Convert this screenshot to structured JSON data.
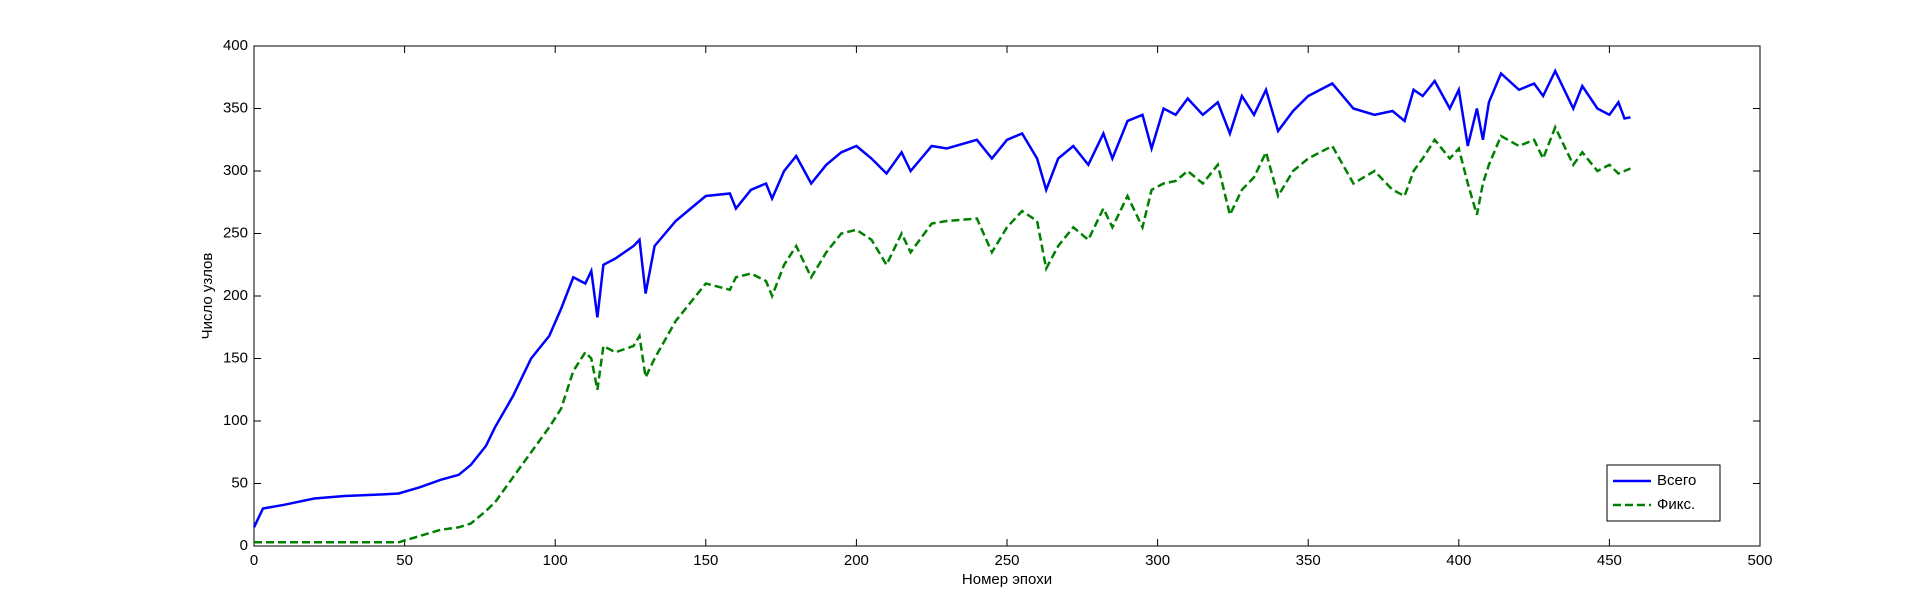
{
  "chart_data": {
    "type": "line",
    "xlabel": "Номер эпохи",
    "ylabel": "Число узлов",
    "x": [
      0,
      3,
      10,
      20,
      30,
      40,
      48,
      55,
      62,
      68,
      72,
      77,
      80,
      86,
      92,
      98,
      102,
      106,
      110,
      112,
      114,
      116,
      120,
      126,
      128,
      130,
      133,
      140,
      145,
      150,
      158,
      160,
      165,
      170,
      172,
      176,
      180,
      185,
      190,
      195,
      200,
      205,
      210,
      215,
      218,
      225,
      230,
      240,
      245,
      250,
      255,
      260,
      263,
      267,
      272,
      277,
      282,
      285,
      290,
      295,
      298,
      302,
      306,
      310,
      315,
      320,
      324,
      328,
      332,
      336,
      340,
      345,
      350,
      358,
      365,
      372,
      378,
      382,
      385,
      388,
      392,
      397,
      400,
      403,
      406,
      408,
      410,
      414,
      420,
      425,
      428,
      432,
      438,
      441,
      446,
      450,
      453,
      455,
      457
    ],
    "series": [
      {
        "name": "Всего",
        "color": "#0000ff",
        "dash": "solid",
        "values": [
          15,
          30,
          33,
          38,
          40,
          41,
          42,
          47,
          53,
          57,
          65,
          80,
          95,
          120,
          150,
          168,
          190,
          215,
          210,
          220,
          183,
          225,
          230,
          240,
          245,
          202,
          240,
          260,
          270,
          280,
          282,
          270,
          285,
          290,
          278,
          300,
          312,
          290,
          305,
          315,
          320,
          310,
          298,
          315,
          300,
          320,
          318,
          325,
          310,
          325,
          330,
          310,
          285,
          310,
          320,
          305,
          330,
          310,
          340,
          345,
          318,
          350,
          345,
          358,
          345,
          355,
          330,
          360,
          345,
          365,
          332,
          348,
          360,
          370,
          350,
          345,
          348,
          340,
          365,
          360,
          372,
          350,
          365,
          320,
          350,
          325,
          355,
          378,
          365,
          370,
          360,
          380,
          350,
          368,
          350,
          345,
          355,
          342,
          343
        ]
      },
      {
        "name": "Фикс.",
        "color": "#008000",
        "dash": "dashed",
        "values": [
          3,
          3,
          3,
          3,
          3,
          3,
          3,
          8,
          13,
          15,
          18,
          28,
          35,
          55,
          75,
          95,
          110,
          140,
          155,
          150,
          125,
          160,
          155,
          160,
          168,
          135,
          150,
          180,
          195,
          210,
          205,
          215,
          218,
          212,
          200,
          225,
          240,
          215,
          235,
          250,
          253,
          245,
          225,
          250,
          235,
          258,
          260,
          262,
          235,
          255,
          268,
          260,
          222,
          240,
          255,
          245,
          270,
          255,
          280,
          255,
          285,
          290,
          292,
          300,
          290,
          305,
          265,
          285,
          295,
          315,
          280,
          300,
          310,
          320,
          290,
          300,
          285,
          280,
          300,
          310,
          325,
          310,
          318,
          290,
          265,
          290,
          305,
          328,
          320,
          325,
          310,
          335,
          305,
          315,
          300,
          305,
          298,
          300,
          302
        ]
      }
    ],
    "xlim": [
      0,
      500
    ],
    "xticks": [
      0,
      50,
      100,
      150,
      200,
      250,
      300,
      350,
      400,
      450,
      500
    ],
    "ylim": [
      0,
      400
    ],
    "yticks": [
      0,
      50,
      100,
      150,
      200,
      250,
      300,
      350,
      400
    ],
    "grid": false,
    "legend": "lower right"
  }
}
